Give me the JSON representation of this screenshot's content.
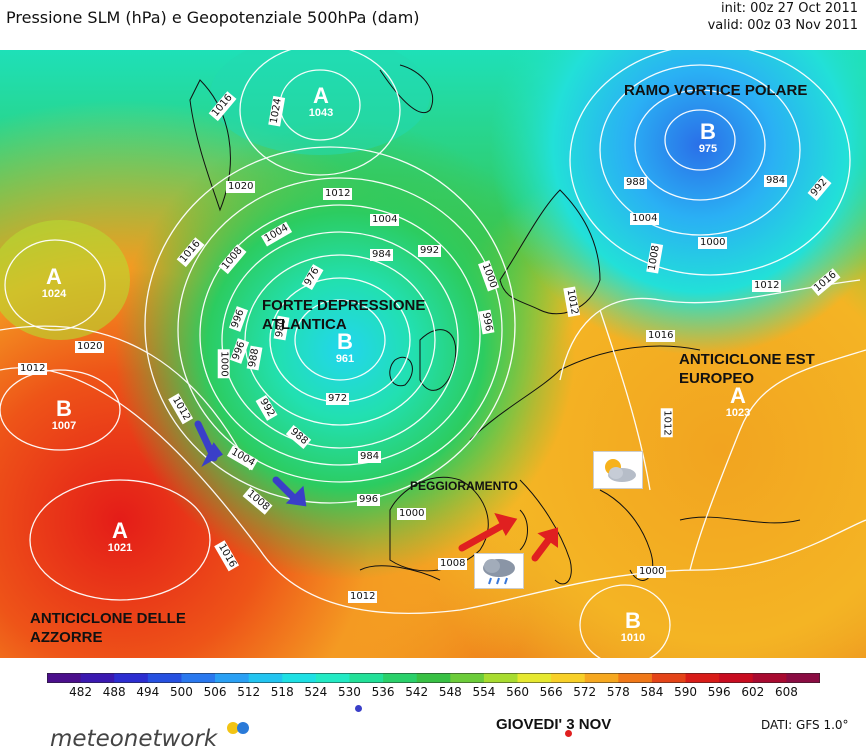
{
  "header": {
    "title": "Pressione SLM (hPa) e Geopotenziale 500hPa (dam)",
    "init": "init: 00z 27 Oct 2011",
    "valid": "valid: 00z 03 Nov 2011"
  },
  "map_labels": {
    "polar_vortex": "RAMO VORTICE POLARE",
    "atlantic_low_line1": "FORTE DEPRESSIONE",
    "atlantic_low_line2": "ATLANTICA",
    "east_europe_high_line1": "ANTICICLONE EST",
    "east_europe_high_line2": "EUROPEO",
    "azores_high_line1": "ANTICICLONE DELLE",
    "azores_high_line2": "AZZORRE",
    "worsening": "PEGGIORAMENTO"
  },
  "pressure_centers": [
    {
      "letter": "A",
      "value": "1043"
    },
    {
      "letter": "B",
      "value": "975"
    },
    {
      "letter": "A",
      "value": "1024"
    },
    {
      "letter": "B",
      "value": "961"
    },
    {
      "letter": "B",
      "value": "1007"
    },
    {
      "letter": "A",
      "value": "1023"
    },
    {
      "letter": "A",
      "value": "1021"
    },
    {
      "letter": "B",
      "value": "1010"
    }
  ],
  "isobar_labels": [
    "1016",
    "1024",
    "1020",
    "1012",
    "1004",
    "992",
    "1000",
    "996",
    "984",
    "988",
    "1004",
    "984",
    "992",
    "1000",
    "1008",
    "1012",
    "1016",
    "1016",
    "1008",
    "1004",
    "976",
    "996",
    "988",
    "1000",
    "980",
    "992",
    "972",
    "988",
    "984",
    "1012",
    "1004",
    "1008",
    "996",
    "1000",
    "1020",
    "1012",
    "1016",
    "1008",
    "1012",
    "1012",
    "1016",
    "1012",
    "996",
    "1000"
  ],
  "colorbar": {
    "ticks": [
      "482",
      "488",
      "494",
      "500",
      "506",
      "512",
      "518",
      "524",
      "530",
      "536",
      "542",
      "548",
      "554",
      "560",
      "566",
      "572",
      "578",
      "584",
      "590",
      "596",
      "602",
      "608"
    ],
    "colors": [
      "#4b0f8c",
      "#3a18b0",
      "#2c2dd0",
      "#2650e0",
      "#2a78ee",
      "#2aa0f4",
      "#22c4f0",
      "#1ee0e4",
      "#22eac4",
      "#22e098",
      "#2ad06a",
      "#38c044",
      "#6ccc3a",
      "#a8dc30",
      "#e6e830",
      "#f8d028",
      "#f6a820",
      "#f07818",
      "#e44418",
      "#d81c18",
      "#c80c20",
      "#a80a30",
      "#8a0c42"
    ]
  },
  "footer": {
    "brand": "meteonetwork",
    "date_label": "GIOVEDI' 3 NOV",
    "source": "DATI:  GFS  1.0°"
  },
  "icons": [
    "storm-cloud-icon",
    "sun-behind-cloud-icon",
    "rain-cloud-icon"
  ],
  "colors": {
    "arrow_blue": "#3a3fc8",
    "arrow_red": "#e02020"
  }
}
